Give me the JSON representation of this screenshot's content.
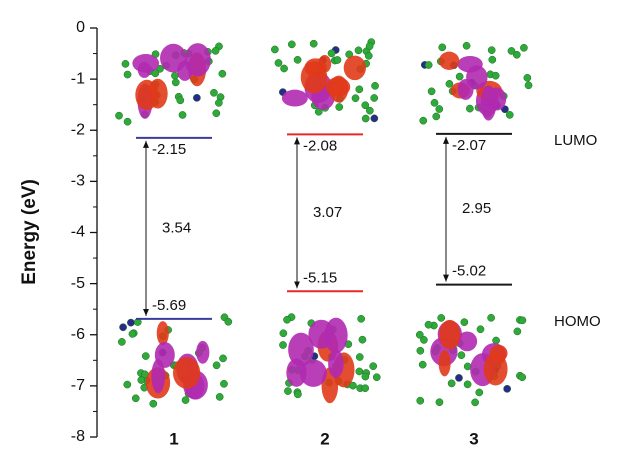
{
  "chart_data": {
    "type": "energy-level",
    "ylabel": "Energy (eV)",
    "categories": [
      "1",
      "2",
      "3"
    ],
    "colors": [
      "#3b3b9c",
      "#e52a2a",
      "#1a1a1a"
    ],
    "series": [
      {
        "name": "LUMO",
        "values": [
          -2.15,
          -2.08,
          -2.07
        ]
      },
      {
        "name": "HOMO",
        "values": [
          -5.69,
          -5.15,
          -5.02
        ]
      }
    ],
    "gaps": [
      3.54,
      3.07,
      2.95
    ],
    "ylim": [
      -8,
      0
    ],
    "yticks": [
      0,
      -1,
      -2,
      -3,
      -4,
      -5,
      -6,
      -7,
      -8
    ]
  }
}
